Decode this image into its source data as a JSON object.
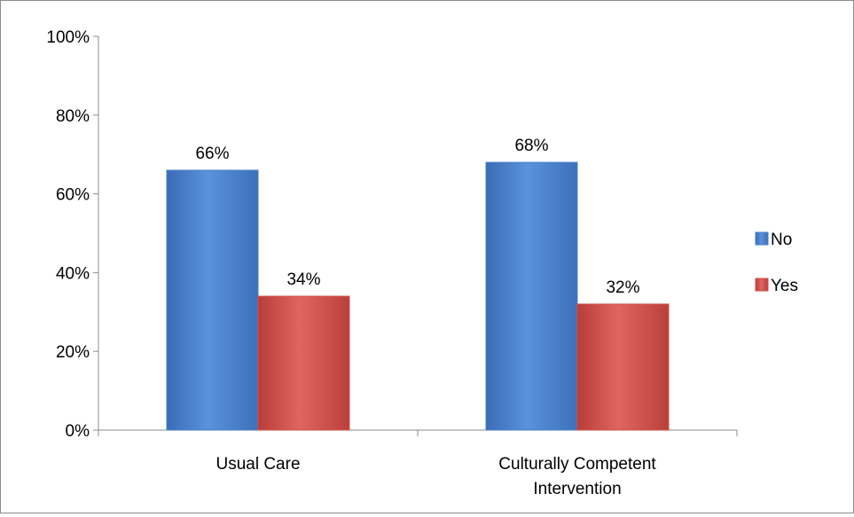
{
  "chart_data": {
    "type": "bar",
    "categories": [
      "Usual Care",
      "Culturally Competent Intervention"
    ],
    "category_lines": [
      [
        "Usual Care"
      ],
      [
        "Culturally Competent",
        "Intervention"
      ]
    ],
    "series": [
      {
        "name": "No",
        "values": [
          66,
          68
        ],
        "labels": [
          "66%",
          "68%"
        ],
        "color": "#4a7fc8"
      },
      {
        "name": "Yes",
        "values": [
          34,
          32
        ],
        "labels": [
          "34%",
          "32%"
        ],
        "color": "#cf4f4a"
      }
    ],
    "title": "",
    "xlabel": "",
    "ylabel": "",
    "ylim": [
      0,
      100
    ],
    "yticks": [
      0,
      20,
      40,
      60,
      80,
      100
    ],
    "ytick_labels": [
      "0%",
      "20%",
      "40%",
      "60%",
      "80%",
      "100%"
    ],
    "grid": false,
    "legend": "right"
  }
}
